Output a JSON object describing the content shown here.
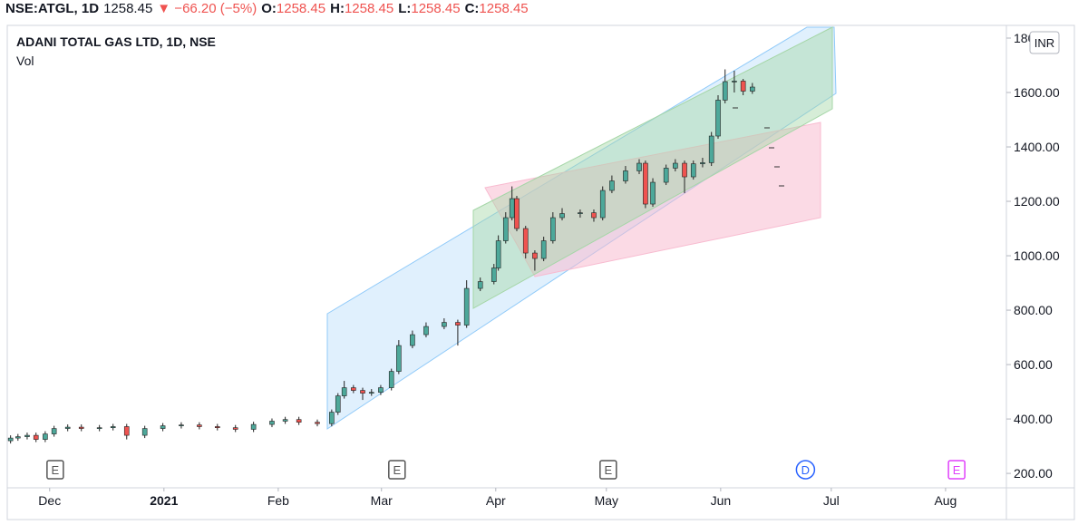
{
  "header": {
    "symbol": "NSE:ATGL, 1D",
    "price": "1258.45",
    "change": "▼ −66.20 (−5%)",
    "ohlc": [
      {
        "label": "O:",
        "value": "1258.45"
      },
      {
        "label": "H:",
        "value": "1258.45"
      },
      {
        "label": "L:",
        "value": "1258.45"
      },
      {
        "label": "C:",
        "value": "1258.45"
      }
    ]
  },
  "chart_data": {
    "type": "candlestick",
    "title": "ADANI TOTAL GAS LTD, 1D, NSE",
    "indicator": "Vol",
    "currency": "INR",
    "up_color": "#4da89a",
    "down_color": "#ef5350",
    "x": [
      -10.6,
      -8.6,
      -6.1,
      -3.7,
      -1.2,
      1.2,
      4.9,
      8.6,
      13.5,
      17.2,
      20.9,
      25.8,
      30.7,
      35.7,
      40.6,
      45.5,
      50.4,
      55.3,
      60.3,
      63.9,
      67.6,
      72.6,
      76.5,
      78.2,
      79.9,
      82.4,
      84.9,
      87.3,
      89.8,
      92.7,
      94.7,
      98.4,
      102.1,
      107.0,
      110.7,
      113.1,
      116.8,
      120.5,
      121.7,
      123.7,
      125.4,
      126.7,
      129.1,
      131.6,
      134.0,
      136.5,
      139.0,
      143.9,
      147.6,
      150.0,
      152.5,
      156.2,
      159.9,
      161.6,
      163.6,
      167.2,
      169.7,
      172.2,
      174.6,
      177.1,
      179.5,
      181.3,
      183.2,
      185.7,
      188.1,
      190.6
    ],
    "open": [
      320,
      330,
      335,
      340,
      325,
      345,
      365,
      370,
      365,
      368,
      372,
      340,
      365,
      375,
      378,
      372,
      368,
      362,
      380,
      392,
      398,
      388,
      383,
      425,
      485,
      515,
      505,
      495,
      498,
      515,
      575,
      670,
      710,
      740,
      755,
      745,
      880,
      905,
      955,
      1055,
      1140,
      1210,
      1100,
      1010,
      990,
      1055,
      1140,
      1155,
      1158,
      1140,
      1240,
      1275,
      1312,
      1340,
      1190,
      1270,
      1322,
      1340,
      1290,
      1338,
      1342,
      1440,
      1572,
      1640,
      1642,
      1605
    ],
    "high": [
      340,
      345,
      350,
      350,
      355,
      375,
      380,
      380,
      378,
      382,
      382,
      375,
      385,
      388,
      388,
      382,
      378,
      390,
      402,
      408,
      408,
      398,
      435,
      495,
      540,
      525,
      515,
      510,
      525,
      585,
      690,
      725,
      755,
      770,
      765,
      910,
      920,
      970,
      1075,
      1160,
      1255,
      1220,
      1110,
      1020,
      1070,
      1160,
      1175,
      1170,
      1170,
      1255,
      1295,
      1330,
      1355,
      1350,
      1285,
      1335,
      1355,
      1350,
      1350,
      1360,
      1455,
      1590,
      1685,
      1680,
      1650,
      1635
    ],
    "low": [
      310,
      320,
      325,
      315,
      315,
      335,
      355,
      355,
      355,
      358,
      325,
      330,
      355,
      365,
      362,
      358,
      352,
      352,
      370,
      382,
      378,
      373,
      373,
      415,
      475,
      495,
      470,
      485,
      488,
      505,
      565,
      660,
      700,
      730,
      670,
      735,
      870,
      895,
      945,
      1045,
      1130,
      1090,
      990,
      945,
      980,
      1045,
      1130,
      1140,
      1125,
      1130,
      1230,
      1265,
      1300,
      1175,
      1180,
      1260,
      1310,
      1230,
      1280,
      1325,
      1330,
      1430,
      1560,
      1600,
      1590,
      1595
    ],
    "close": [
      330,
      335,
      340,
      325,
      345,
      365,
      370,
      365,
      368,
      372,
      340,
      365,
      375,
      378,
      372,
      368,
      362,
      380,
      392,
      398,
      388,
      383,
      425,
      485,
      515,
      505,
      495,
      498,
      515,
      575,
      670,
      710,
      740,
      755,
      745,
      880,
      905,
      955,
      1055,
      1140,
      1210,
      1100,
      1010,
      990,
      1055,
      1140,
      1155,
      1158,
      1140,
      1240,
      1275,
      1312,
      1340,
      1190,
      1270,
      1322,
      1340,
      1290,
      1338,
      1342,
      1440,
      1572,
      1640,
      1642,
      1605,
      1620
    ],
    "xlim": [
      -11.5,
      259.5
    ],
    "xticks": [
      {
        "value": 0,
        "label": "Dec"
      },
      {
        "value": 31,
        "label": "2021"
      },
      {
        "value": 62,
        "label": "Feb"
      },
      {
        "value": 90,
        "label": "Mar"
      },
      {
        "value": 121,
        "label": "Apr"
      },
      {
        "value": 151,
        "label": "May"
      },
      {
        "value": 182,
        "label": "Jun"
      },
      {
        "value": 212,
        "label": "Jul"
      },
      {
        "value": 243,
        "label": "Aug"
      }
    ],
    "ylim": [
      147,
      1840
    ],
    "yticks": [
      {
        "value": 200,
        "label": "200.00"
      },
      {
        "value": 400,
        "label": "400.00"
      },
      {
        "value": 600,
        "label": "600.00"
      },
      {
        "value": 800,
        "label": "800.00"
      },
      {
        "value": 1000,
        "label": "1000.00"
      },
      {
        "value": 1200,
        "label": "1200.00"
      },
      {
        "value": 1400,
        "label": "1400.00"
      },
      {
        "value": 1600,
        "label": "1600.00"
      },
      {
        "value": 1800,
        "label": "1800.00"
      }
    ],
    "events": [
      {
        "x": 1.5,
        "label": "E",
        "color": "#555555"
      },
      {
        "x": 94.2,
        "label": "E",
        "color": "#555555"
      },
      {
        "x": 151.5,
        "label": "E",
        "color": "#555555"
      },
      {
        "x": 205,
        "label": "D",
        "color": "#2962ff"
      },
      {
        "x": 246,
        "label": "E",
        "color": "#e040fb"
      }
    ]
  }
}
